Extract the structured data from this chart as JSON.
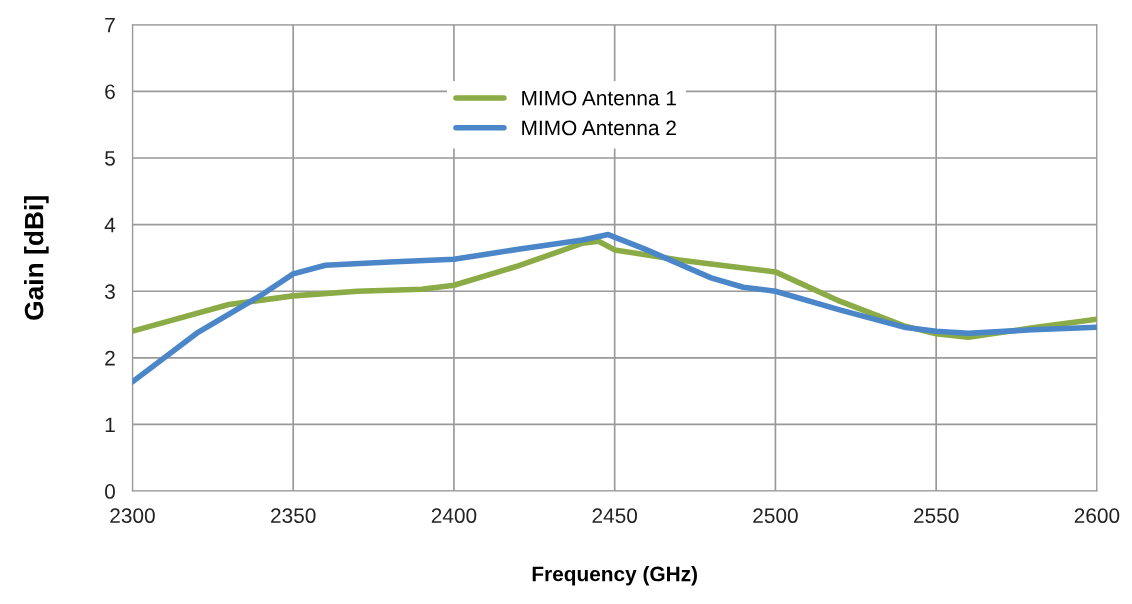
{
  "chart_data": {
    "type": "line",
    "xlabel": "Frequency (GHz)",
    "ylabel": "Gain [dBi]",
    "xlim": [
      2300,
      2600
    ],
    "xticks": [
      2300,
      2350,
      2400,
      2450,
      2500,
      2550,
      2600
    ],
    "ylim": [
      0,
      7
    ],
    "yticks": [
      0,
      1,
      2,
      3,
      4,
      5,
      6,
      7
    ],
    "grid": true,
    "legend": "top",
    "marker": "none",
    "line_style": "solid",
    "series": [
      {
        "name": "MIMO Antenna 1",
        "color": "#8aab45",
        "x": [
          2300,
          2330,
          2350,
          2370,
          2390,
          2400,
          2420,
          2440,
          2445,
          2450,
          2470,
          2490,
          2500,
          2520,
          2540,
          2550,
          2560,
          2580,
          2600
        ],
        "values": [
          2.4,
          2.8,
          2.93,
          3.0,
          3.03,
          3.09,
          3.38,
          3.72,
          3.75,
          3.62,
          3.47,
          3.35,
          3.29,
          2.85,
          2.48,
          2.36,
          2.31,
          2.45,
          2.58
        ]
      },
      {
        "name": "MIMO Antenna 2",
        "color": "#4a86c8",
        "x": [
          2300,
          2320,
          2340,
          2350,
          2360,
          2380,
          2400,
          2420,
          2440,
          2448,
          2460,
          2480,
          2490,
          2500,
          2520,
          2540,
          2550,
          2560,
          2580,
          2600
        ],
        "values": [
          1.64,
          2.37,
          2.94,
          3.26,
          3.39,
          3.44,
          3.48,
          3.63,
          3.77,
          3.85,
          3.62,
          3.2,
          3.06,
          3.0,
          2.72,
          2.46,
          2.4,
          2.37,
          2.42,
          2.46
        ]
      }
    ]
  }
}
